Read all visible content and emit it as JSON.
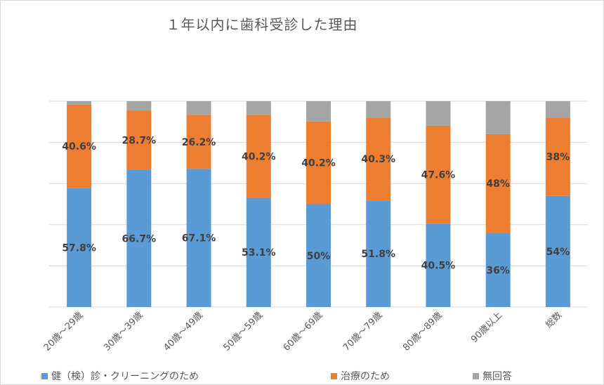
{
  "chart_data": {
    "type": "bar",
    "stacked": true,
    "percent": true,
    "title": "１年以内に歯科受診した理由",
    "categories": [
      "20歳～29歳",
      "30歳～39歳",
      "40歳～49歳",
      "50歳～59歳",
      "60歳～69歳",
      "70歳～79歳",
      "80歳～89歳",
      "90歳以上",
      "総数"
    ],
    "series": [
      {
        "name": "健（検）診・クリーニングのため",
        "color": "#5B9BD5",
        "values": [
          57.8,
          66.7,
          67.1,
          53.1,
          50,
          51.8,
          40.5,
          36,
          54
        ],
        "labels": [
          "57.8%",
          "66.7%",
          "67.1%",
          "53.1%",
          "50%",
          "51.8%",
          "40.5%",
          "36%",
          "54%"
        ]
      },
      {
        "name": "治療のため",
        "color": "#ED7D31",
        "values": [
          40.6,
          28.7,
          26.2,
          40.2,
          40.2,
          40.3,
          47.6,
          48,
          38
        ],
        "labels": [
          "40.6%",
          "28.7%",
          "26.2%",
          "40.2%",
          "40.2%",
          "40.3%",
          "47.6%",
          "48%",
          "38%"
        ]
      },
      {
        "name": "無回答",
        "color": "#A5A5A5",
        "values": [
          1.6,
          4.6,
          6.7,
          6.7,
          9.8,
          7.9,
          11.9,
          16,
          8
        ]
      }
    ],
    "ylim": [
      0,
      100
    ],
    "grid": true,
    "legend": "bottom",
    "label_color": "#404040",
    "gridline_color": "#d9d9d9"
  }
}
